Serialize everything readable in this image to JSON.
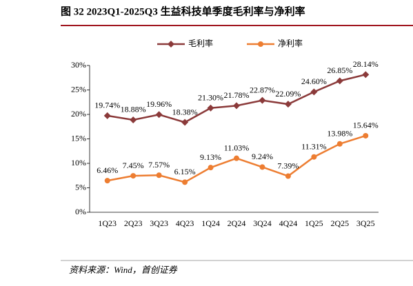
{
  "chart_data": {
    "type": "line",
    "title": "图 32 2023Q1-2025Q3 生益科技单季度毛利率与净利率",
    "source": "资料来源：Wind，首创证券",
    "categories": [
      "1Q23",
      "2Q23",
      "3Q23",
      "4Q23",
      "1Q24",
      "2Q24",
      "3Q24",
      "4Q24",
      "1Q25",
      "2Q25",
      "3Q25"
    ],
    "series": [
      {
        "name": "毛利率",
        "color": "#8B3A3A",
        "marker": "diamond",
        "values": [
          19.74,
          18.88,
          19.96,
          18.38,
          21.3,
          21.78,
          22.87,
          22.09,
          24.6,
          26.85,
          28.14
        ],
        "value_labels": [
          "19.74%",
          "18.88%",
          "19.96%",
          "18.38%",
          "21.30%",
          "21.78%",
          "22.87%",
          "22.09%",
          "24.60%",
          "26.85%",
          "28.14%"
        ]
      },
      {
        "name": "净利率",
        "color": "#ED7D31",
        "marker": "circle",
        "values": [
          6.46,
          7.45,
          7.57,
          6.15,
          9.13,
          11.03,
          9.24,
          7.39,
          11.31,
          13.98,
          15.64
        ],
        "value_labels": [
          "6.46%",
          "7.45%",
          "7.57%",
          "6.15%",
          "9.13%",
          "11.03%",
          "9.24%",
          "7.39%",
          "11.31%",
          "13.98%",
          "15.64%"
        ]
      }
    ],
    "ylim": [
      0,
      30
    ],
    "yticks": [
      {
        "value": 0,
        "label": "0%"
      },
      {
        "value": 5,
        "label": "5%"
      },
      {
        "value": 10,
        "label": "10%"
      },
      {
        "value": 15,
        "label": "15%"
      },
      {
        "value": 20,
        "label": "20%"
      },
      {
        "value": 25,
        "label": "25%"
      },
      {
        "value": 30,
        "label": "30%"
      }
    ],
    "grid": false,
    "legend": "top"
  }
}
